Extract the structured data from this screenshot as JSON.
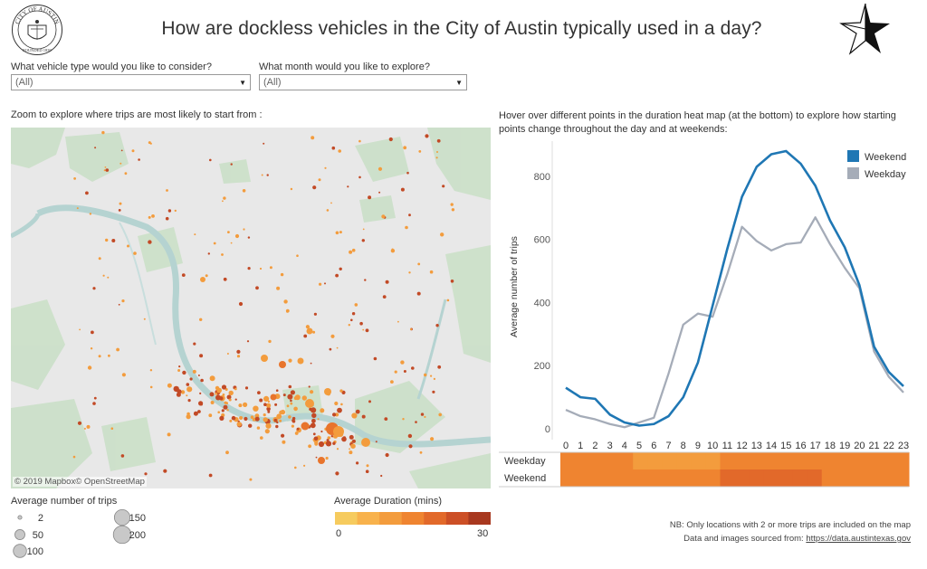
{
  "header": {
    "title": "How are dockless vehicles in the City of Austin typically used in a day?",
    "seal_text": "CITY OF AUSTIN",
    "seal_subtext": "FOUNDED 1839"
  },
  "filters": {
    "vehicle": {
      "label": "What vehicle type would you like to consider?",
      "value": "(All)"
    },
    "month": {
      "label": "What month would you like to explore?",
      "value": "(All)"
    }
  },
  "map": {
    "caption": "Zoom to explore where trips are most likely to start from :",
    "attribution": "© 2019 Mapbox© OpenStreetMap"
  },
  "hover_text": "Hover over different points in the duration heat map (at the bottom) to explore how starting points change throughout the day and at weekends:",
  "legends": {
    "size_title": "Average number of trips",
    "size_items": [
      {
        "label": "2",
        "value": 2
      },
      {
        "label": "50",
        "value": 50
      },
      {
        "label": "100",
        "value": 100
      },
      {
        "label": "150",
        "value": 150
      },
      {
        "label": "200",
        "value": 200
      }
    ],
    "color_title": "Average Duration (mins)",
    "color_min": "0",
    "color_max": "30",
    "color_steps": [
      "#f6cb5e",
      "#f8b24c",
      "#f39c3d",
      "#ef8430",
      "#e2692a",
      "#cc4f26",
      "#a8381f"
    ]
  },
  "notes": {
    "line1": "NB: Only locations with 2 or more trips are included on the map",
    "line2_prefix": "Data and images sourced from: ",
    "line2_link": "https://data.austintexas.gov"
  },
  "colors": {
    "weekend": "#1f77b4",
    "weekday": "#a5acb8",
    "map_point_light": "#f39c3d",
    "map_point_dark": "#c24a26"
  },
  "chart_data": [
    {
      "type": "line",
      "title": "",
      "xlabel": "",
      "ylabel": "Average number of trips",
      "ylim": [
        0,
        900
      ],
      "yticks": [
        0,
        200,
        400,
        600,
        800
      ],
      "x": [
        0,
        1,
        2,
        3,
        4,
        5,
        6,
        7,
        8,
        9,
        10,
        11,
        12,
        13,
        14,
        15,
        16,
        17,
        18,
        19,
        20,
        21,
        22,
        23
      ],
      "x_tick_labels": [
        "0",
        "1",
        "2",
        "3",
        "4",
        "5",
        "6",
        "7",
        "8",
        "9",
        "10",
        "11",
        "12",
        "13",
        "14",
        "15",
        "16",
        "17",
        "18",
        "19",
        "20",
        "21",
        "22",
        "23"
      ],
      "legend_position": "top-right",
      "grid": false,
      "series": [
        {
          "name": "Weekend",
          "values": [
            130,
            100,
            95,
            45,
            20,
            10,
            15,
            40,
            100,
            210,
            390,
            570,
            735,
            830,
            870,
            880,
            840,
            770,
            660,
            575,
            455,
            260,
            180,
            135
          ]
        },
        {
          "name": "Weekday",
          "values": [
            60,
            40,
            30,
            15,
            5,
            20,
            35,
            175,
            330,
            365,
            355,
            490,
            640,
            595,
            565,
            585,
            590,
            670,
            585,
            510,
            445,
            245,
            165,
            115
          ]
        }
      ]
    },
    {
      "type": "heatmap",
      "title": "",
      "rows": [
        "Weekday",
        "Weekend"
      ],
      "columns": [
        "0",
        "1",
        "2",
        "3",
        "4",
        "5",
        "6",
        "7",
        "8",
        "9",
        "10",
        "11",
        "12",
        "13",
        "14",
        "15",
        "16",
        "17",
        "18",
        "19",
        "20",
        "21",
        "22",
        "23"
      ],
      "color_scale": "Average Duration (mins)",
      "values": [
        [
          15,
          15,
          15,
          15,
          15,
          10,
          10,
          10,
          10,
          10,
          10,
          15,
          15,
          15,
          15,
          15,
          15,
          15,
          15,
          15,
          15,
          15,
          15,
          15
        ],
        [
          15,
          15,
          15,
          15,
          15,
          15,
          15,
          15,
          15,
          15,
          15,
          20,
          20,
          20,
          20,
          20,
          20,
          20,
          15,
          15,
          15,
          15,
          15,
          15
        ]
      ]
    }
  ]
}
